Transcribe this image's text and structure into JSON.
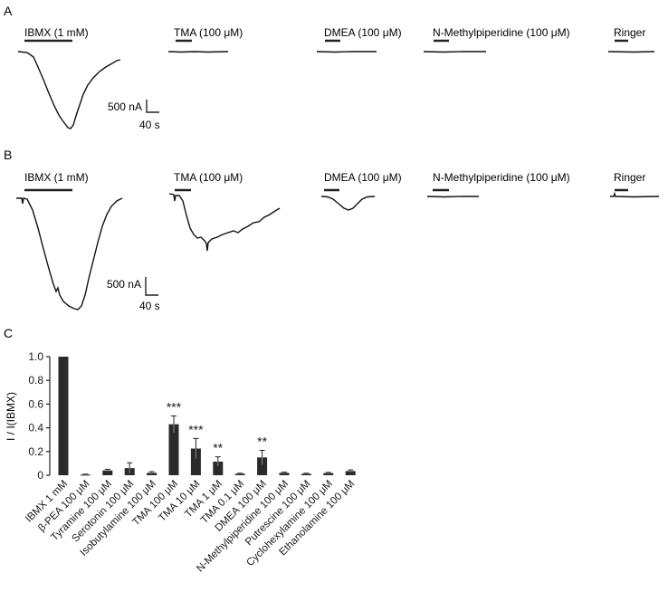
{
  "panels": {
    "a": {
      "letter": "A",
      "traces": [
        {
          "label": "IBMX (1 mM)"
        },
        {
          "label": "TMA (100 μM)"
        },
        {
          "label": "DMEA (100 μM)"
        },
        {
          "label": "N-Methylpiperidine (100 μM)"
        },
        {
          "label": "Ringer"
        }
      ],
      "scale": {
        "current": "500 nA",
        "time": "40 s"
      }
    },
    "b": {
      "letter": "B",
      "traces": [
        {
          "label": "IBMX (1 mM)"
        },
        {
          "label": "TMA (100 μM)"
        },
        {
          "label": "DMEA (100 μM)"
        },
        {
          "label": "N-Methylpiperidine (100 μM)"
        },
        {
          "label": "Ringer"
        }
      ],
      "scale": {
        "current": "500 nA",
        "time": "40 s"
      }
    },
    "c": {
      "letter": "C"
    }
  },
  "chart_data": {
    "type": "bar",
    "categories": [
      "IBMX 1 mM",
      "β-PEA 100 μM",
      "Tyramine 100 μM",
      "Serotonin 100 μM",
      "Isobutylamine 100 μM",
      "TMA 100 μM",
      "TMA 10 μM",
      "TMA 1 μM",
      "TMA 0.1 μM",
      "DMEA 100 μM",
      "N-Methylpiperidine 100 μM",
      "Putrescine 100 μM",
      "Cyclohexylamine 100 μM",
      "Ethanolamine 100 μM"
    ],
    "values": [
      1.0,
      0.005,
      0.04,
      0.06,
      0.02,
      0.43,
      0.225,
      0.115,
      0.012,
      0.15,
      0.02,
      0.012,
      0.018,
      0.035
    ],
    "errors": [
      0,
      0.004,
      0.01,
      0.045,
      0.01,
      0.07,
      0.085,
      0.04,
      0.005,
      0.06,
      0.006,
      0.005,
      0.006,
      0.01
    ],
    "significance": [
      "",
      "",
      "",
      "",
      "",
      "***",
      "***",
      "**",
      "",
      "**",
      "",
      "",
      "",
      ""
    ],
    "ylabel": "I / I(IBMX)",
    "ylim": [
      0,
      1.0
    ],
    "yticks": [
      "0",
      "0.2",
      "0.4",
      "0.6",
      "0.8",
      "1.0"
    ],
    "bar_color": "#2a2a2a"
  },
  "colors": {
    "trace": "#111111",
    "axis": "#222222",
    "text": "#1a1a1a"
  }
}
